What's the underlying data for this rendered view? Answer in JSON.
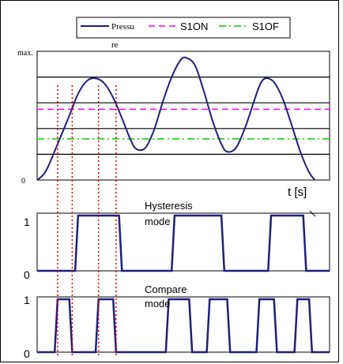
{
  "colors": {
    "pressure": "#1f1f7a",
    "s1on": "#ff00ff",
    "s1of": "#00d000",
    "markers": "#e00000",
    "grid": "#000000",
    "frame": "#000000"
  },
  "chart_data": [
    {
      "type": "line",
      "legend": {
        "placement": "top",
        "entries": [
          {
            "name": "Pressure",
            "label_lines": [
              "Pressu",
              "re"
            ],
            "style": "solid"
          },
          {
            "name": "S1ON",
            "label_lines": [
              "S1ON"
            ],
            "style": "dashed"
          },
          {
            "name": "S1OF",
            "label_lines": [
              "S1OF"
            ],
            "style": "dashdot"
          }
        ]
      },
      "ylabel_top": "max.",
      "ylabel_bottom": "0",
      "xlabel": "t [s]",
      "xlim": [
        0,
        100
      ],
      "ylim": [
        0,
        5
      ],
      "grid_levels": [
        1,
        2,
        3,
        4
      ],
      "series": [
        {
          "name": "Pressure",
          "points": [
            [
              0,
              0
            ],
            [
              3,
              0.35
            ],
            [
              7,
              1.4
            ],
            [
              11,
              2.5
            ],
            [
              14,
              3.35
            ],
            [
              17,
              3.85
            ],
            [
              20,
              3.95
            ],
            [
              23,
              3.75
            ],
            [
              26,
              3.2
            ],
            [
              29,
              2.4
            ],
            [
              32,
              1.55
            ],
            [
              34,
              1.2
            ],
            [
              37,
              1.25
            ],
            [
              40,
              1.95
            ],
            [
              43,
              3.05
            ],
            [
              46,
              4.0
            ],
            [
              49,
              4.65
            ],
            [
              51,
              4.75
            ],
            [
              54,
              4.45
            ],
            [
              57,
              3.45
            ],
            [
              60,
              2.3
            ],
            [
              63,
              1.4
            ],
            [
              65,
              1.1
            ],
            [
              68,
              1.25
            ],
            [
              71,
              2.0
            ],
            [
              74,
              3.0
            ],
            [
              76,
              3.65
            ],
            [
              78,
              3.95
            ],
            [
              81,
              3.8
            ],
            [
              84,
              3.15
            ],
            [
              87,
              2.15
            ],
            [
              90,
              1.1
            ],
            [
              93,
              0.3
            ],
            [
              95,
              0
            ]
          ]
        },
        {
          "name": "S1ON",
          "level": 2.75
        },
        {
          "name": "S1OF",
          "level": 1.6
        }
      ]
    },
    {
      "type": "line",
      "title": "Hysteresis mode",
      "title_lines": [
        "Hysteresis",
        "mode"
      ],
      "yticks": [
        "0",
        "1"
      ],
      "xlim": [
        0,
        100
      ],
      "ylim": [
        0,
        1
      ],
      "series": [
        {
          "name": "Hysteresis mode",
          "points": [
            [
              0,
              0
            ],
            [
              13,
              0
            ],
            [
              14,
              1
            ],
            [
              28,
              1
            ],
            [
              29,
              0
            ],
            [
              46,
              0
            ],
            [
              47,
              1
            ],
            [
              63,
              1
            ],
            [
              64,
              0
            ],
            [
              79,
              0
            ],
            [
              80,
              1
            ],
            [
              91,
              1
            ],
            [
              92,
              0
            ],
            [
              100,
              0
            ]
          ]
        }
      ]
    },
    {
      "type": "line",
      "title": "Compare mode",
      "title_lines": [
        "Compare",
        "mode"
      ],
      "yticks": [
        "0",
        "1"
      ],
      "xlim": [
        0,
        100
      ],
      "ylim": [
        0,
        1
      ],
      "series": [
        {
          "name": "Compare mode",
          "points": [
            [
              0,
              0
            ],
            [
              6,
              0
            ],
            [
              7,
              1
            ],
            [
              11,
              1
            ],
            [
              12,
              0
            ],
            [
              20,
              0
            ],
            [
              21,
              1
            ],
            [
              26,
              1
            ],
            [
              27,
              0
            ],
            [
              44,
              0
            ],
            [
              45,
              1
            ],
            [
              52,
              1
            ],
            [
              53,
              0
            ],
            [
              58,
              0
            ],
            [
              59,
              1
            ],
            [
              65,
              1
            ],
            [
              66,
              0
            ],
            [
              75,
              0
            ],
            [
              76,
              1
            ],
            [
              81,
              1
            ],
            [
              82,
              0
            ],
            [
              88,
              0
            ],
            [
              89,
              1
            ],
            [
              93,
              1
            ],
            [
              94,
              0
            ],
            [
              100,
              0
            ]
          ]
        }
      ]
    }
  ]
}
